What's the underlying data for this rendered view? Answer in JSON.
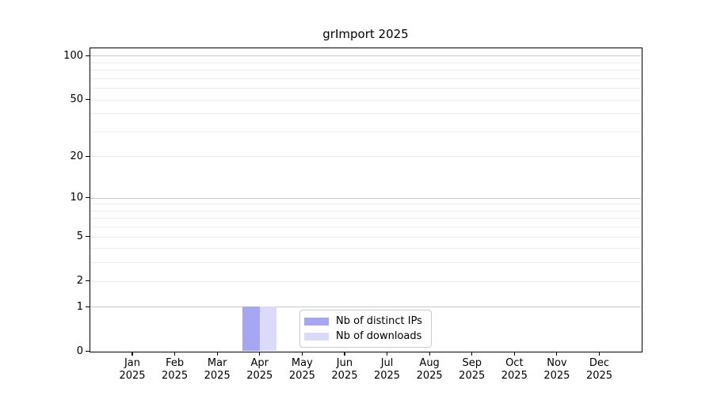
{
  "chart_data": {
    "type": "bar",
    "title": "grImport 2025",
    "categories": [
      "Jan",
      "Feb",
      "Mar",
      "Apr",
      "May",
      "Jun",
      "Jul",
      "Aug",
      "Sep",
      "Oct",
      "Nov",
      "Dec"
    ],
    "x_year_label": "2025",
    "series": [
      {
        "name": "Nb of distinct IPs",
        "color": "#a6a6f2",
        "values": [
          0,
          0,
          0,
          1,
          0,
          0,
          0,
          0,
          0,
          0,
          0,
          0
        ]
      },
      {
        "name": "Nb of downloads",
        "color": "#dbdbf9",
        "values": [
          0,
          0,
          0,
          1,
          0,
          0,
          0,
          0,
          0,
          0,
          0,
          0
        ]
      }
    ],
    "y_scale": "log10(1+x)",
    "y_ticks": [
      0,
      1,
      2,
      5,
      10,
      20,
      50,
      100
    ],
    "y_minor_gridlines": [
      2,
      3,
      4,
      5,
      6,
      7,
      8,
      9,
      20,
      30,
      40,
      50,
      60,
      70,
      80,
      90
    ],
    "y_major_gridlines": [
      1,
      10,
      100
    ],
    "ylim": [
      0,
      113
    ],
    "grid": "horizontal",
    "legend_position": "bottom-center-inside"
  },
  "colors": {
    "background": "#ffffff",
    "axis": "#000000",
    "text": "#000000",
    "minor_grid": "#ededed",
    "major_grid": "#c9c9c9",
    "legend_border": "#cccccc",
    "legend_bg": "#ffffff"
  }
}
